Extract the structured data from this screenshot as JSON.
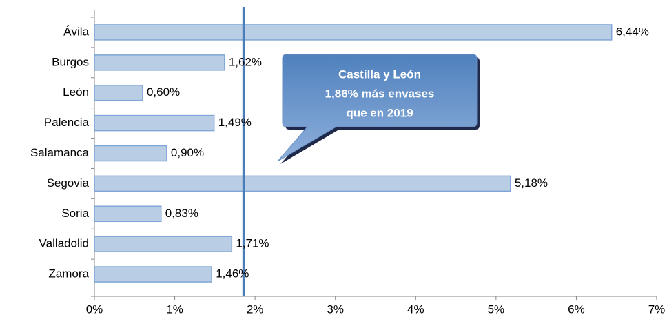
{
  "chart_data": {
    "type": "bar",
    "orientation": "horizontal",
    "categories": [
      "Ávila",
      "Burgos",
      "León",
      "Palencia",
      "Salamanca",
      "Segovia",
      "Soria",
      "Valladolid",
      "Zamora"
    ],
    "values": [
      6.44,
      1.62,
      0.6,
      1.49,
      0.9,
      5.18,
      0.83,
      1.71,
      1.46
    ],
    "value_labels": [
      "6,44%",
      "1,62%",
      "0,60%",
      "1,49%",
      "0,90%",
      "5,18%",
      "0,83%",
      "1,71%",
      "1,46%"
    ],
    "color": "#b9cde5",
    "xlim": [
      0,
      7
    ],
    "xticks": [
      {
        "value": 0,
        "label": "0%"
      },
      {
        "value": 1,
        "label": "1%"
      },
      {
        "value": 2,
        "label": "2%"
      },
      {
        "value": 3,
        "label": "3%"
      },
      {
        "value": 4,
        "label": "4%"
      },
      {
        "value": 5,
        "label": "5%"
      },
      {
        "value": 6,
        "label": "6%"
      },
      {
        "value": 7,
        "label": "7%"
      }
    ],
    "reference_line": {
      "value": 1.86,
      "color": "#4a7ebb"
    },
    "annotation": [
      "Castilla y León",
      "1,86% más envases",
      "que en 2019"
    ]
  }
}
